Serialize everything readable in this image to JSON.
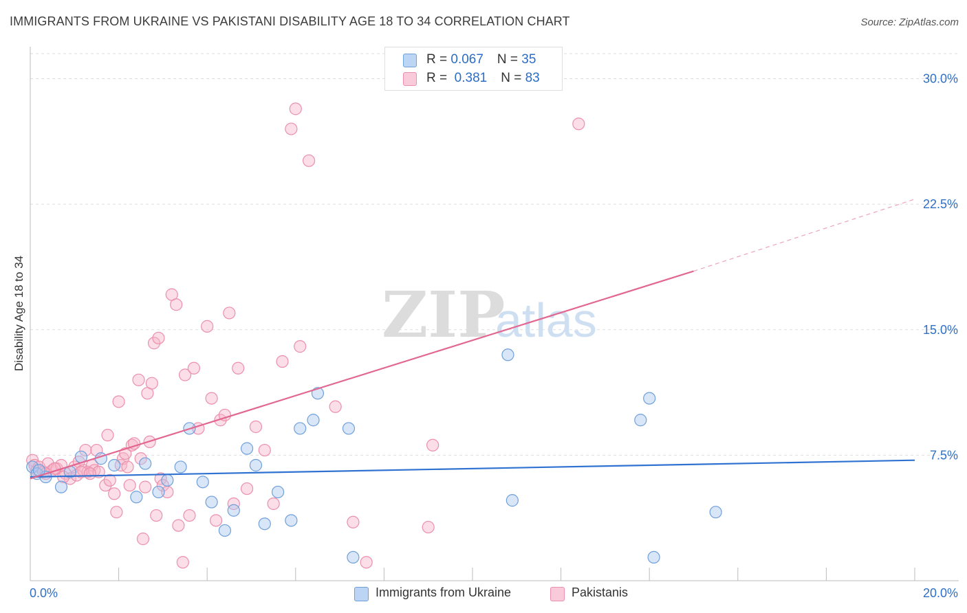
{
  "title": "IMMIGRANTS FROM UKRAINE VS PAKISTANI DISABILITY AGE 18 TO 34 CORRELATION CHART",
  "source": "Source: ZipAtlas.com",
  "watermark": {
    "zip": "ZIP",
    "atlas": "atlas"
  },
  "legend": {
    "rows": [
      {
        "r_label": "R = ",
        "r_value": "0.067",
        "n_label": "N = ",
        "n_value": "35"
      },
      {
        "r_label": "R = ",
        "r_value": " 0.381",
        "n_label": "N = ",
        "n_value": "83"
      }
    ]
  },
  "colors": {
    "ukraine_fill": "#a9c8f0",
    "ukraine_stroke": "#6f9fdb",
    "ukraine_line": "#2f72d1",
    "pakistani_fill": "#f6b5c9",
    "pakistani_stroke": "#ec8fac",
    "pakistani_line": "#e2668f",
    "grid": "#dddddd",
    "axis_label": "#2f6fc6"
  },
  "chart_data": {
    "type": "scatter",
    "title": "IMMIGRANTS FROM UKRAINE VS PAKISTANI DISABILITY AGE 18 TO 34 CORRELATION CHART",
    "xlabel": "",
    "ylabel": "Disability Age 18 to 34",
    "xlim": [
      0,
      20
    ],
    "ylim": [
      0,
      31.5
    ],
    "x_tick_labels": [
      "0.0%",
      "20.0%"
    ],
    "y_ticks": [
      7.5,
      15.0,
      22.5,
      30.0
    ],
    "y_tick_labels": [
      "7.5%",
      "15.0%",
      "22.5%",
      "30.0%"
    ],
    "grid": true,
    "legend_position": "top-center",
    "series": [
      {
        "name": "Immigrants from Ukraine",
        "R": 0.067,
        "N": 35,
        "trend": {
          "x0": 0,
          "y0": 6.2,
          "x1": 20,
          "y1": 7.2
        },
        "points": [
          [
            0.05,
            6.8
          ],
          [
            0.15,
            6.4
          ],
          [
            0.35,
            6.2
          ],
          [
            0.7,
            5.6
          ],
          [
            0.9,
            6.5
          ],
          [
            1.15,
            7.4
          ],
          [
            1.6,
            7.3
          ],
          [
            1.9,
            6.9
          ],
          [
            2.4,
            5.0
          ],
          [
            2.6,
            7.0
          ],
          [
            2.9,
            5.3
          ],
          [
            3.1,
            6.0
          ],
          [
            3.4,
            6.8
          ],
          [
            3.6,
            9.1
          ],
          [
            3.9,
            5.9
          ],
          [
            4.1,
            4.7
          ],
          [
            4.4,
            3.0
          ],
          [
            4.6,
            4.2
          ],
          [
            4.9,
            7.9
          ],
          [
            5.1,
            6.9
          ],
          [
            5.3,
            3.4
          ],
          [
            5.6,
            5.3
          ],
          [
            5.9,
            3.6
          ],
          [
            6.1,
            9.1
          ],
          [
            6.4,
            9.6
          ],
          [
            6.5,
            11.2
          ],
          [
            7.2,
            9.1
          ],
          [
            7.3,
            1.4
          ],
          [
            10.8,
            13.5
          ],
          [
            10.9,
            4.8
          ],
          [
            13.8,
            9.6
          ],
          [
            14.0,
            10.9
          ],
          [
            14.1,
            1.4
          ],
          [
            15.5,
            4.1
          ],
          [
            0.2,
            6.6
          ]
        ]
      },
      {
        "name": "Pakistanis",
        "R": 0.381,
        "N": 83,
        "trend": {
          "x0": 0,
          "y0": 6.1,
          "x1": 15.0,
          "y1": 18.5
        },
        "trend_extension": {
          "x0": 15.0,
          "y0": 18.5,
          "x1": 20,
          "y1": 22.8
        },
        "points": [
          [
            0.05,
            7.2
          ],
          [
            0.1,
            6.9
          ],
          [
            0.15,
            6.6
          ],
          [
            0.2,
            6.8
          ],
          [
            0.3,
            6.5
          ],
          [
            0.4,
            7.0
          ],
          [
            0.5,
            6.6
          ],
          [
            0.6,
            6.7
          ],
          [
            0.7,
            6.9
          ],
          [
            0.8,
            6.4
          ],
          [
            0.9,
            6.1
          ],
          [
            1.0,
            6.8
          ],
          [
            1.05,
            6.3
          ],
          [
            1.1,
            7.1
          ],
          [
            1.2,
            6.6
          ],
          [
            1.25,
            7.8
          ],
          [
            1.3,
            6.5
          ],
          [
            1.4,
            6.9
          ],
          [
            1.45,
            6.6
          ],
          [
            1.5,
            7.8
          ],
          [
            1.55,
            6.5
          ],
          [
            1.7,
            5.7
          ],
          [
            1.75,
            8.7
          ],
          [
            1.8,
            6.0
          ],
          [
            1.9,
            5.2
          ],
          [
            1.95,
            4.1
          ],
          [
            2.0,
            10.7
          ],
          [
            2.05,
            6.9
          ],
          [
            2.1,
            7.3
          ],
          [
            2.15,
            7.6
          ],
          [
            2.2,
            6.8
          ],
          [
            2.25,
            5.7
          ],
          [
            2.3,
            8.1
          ],
          [
            2.35,
            8.2
          ],
          [
            2.45,
            12.0
          ],
          [
            2.5,
            7.3
          ],
          [
            2.55,
            2.5
          ],
          [
            2.6,
            5.6
          ],
          [
            2.65,
            11.2
          ],
          [
            2.7,
            8.3
          ],
          [
            2.75,
            11.8
          ],
          [
            2.8,
            14.2
          ],
          [
            2.85,
            3.9
          ],
          [
            2.9,
            14.5
          ],
          [
            2.95,
            6.1
          ],
          [
            3.0,
            5.7
          ],
          [
            3.1,
            5.3
          ],
          [
            3.2,
            17.1
          ],
          [
            3.3,
            16.5
          ],
          [
            3.35,
            3.3
          ],
          [
            3.45,
            1.1
          ],
          [
            3.5,
            12.3
          ],
          [
            3.6,
            3.9
          ],
          [
            3.7,
            12.7
          ],
          [
            3.8,
            9.1
          ],
          [
            4.0,
            15.2
          ],
          [
            4.1,
            10.9
          ],
          [
            4.2,
            3.6
          ],
          [
            4.3,
            9.6
          ],
          [
            4.4,
            9.9
          ],
          [
            4.5,
            16.0
          ],
          [
            4.6,
            4.6
          ],
          [
            4.7,
            12.7
          ],
          [
            4.9,
            5.5
          ],
          [
            5.1,
            9.2
          ],
          [
            5.3,
            7.8
          ],
          [
            5.5,
            4.6
          ],
          [
            5.7,
            13.1
          ],
          [
            5.9,
            27.0
          ],
          [
            6.0,
            28.2
          ],
          [
            6.1,
            14.0
          ],
          [
            6.3,
            25.1
          ],
          [
            6.9,
            10.4
          ],
          [
            7.3,
            3.5
          ],
          [
            7.6,
            1.1
          ],
          [
            9.0,
            3.2
          ],
          [
            9.1,
            8.1
          ],
          [
            12.4,
            27.3
          ],
          [
            0.35,
            6.4
          ],
          [
            0.55,
            6.7
          ],
          [
            0.75,
            6.2
          ],
          [
            1.15,
            6.5
          ],
          [
            1.35,
            6.4
          ]
        ]
      }
    ]
  }
}
